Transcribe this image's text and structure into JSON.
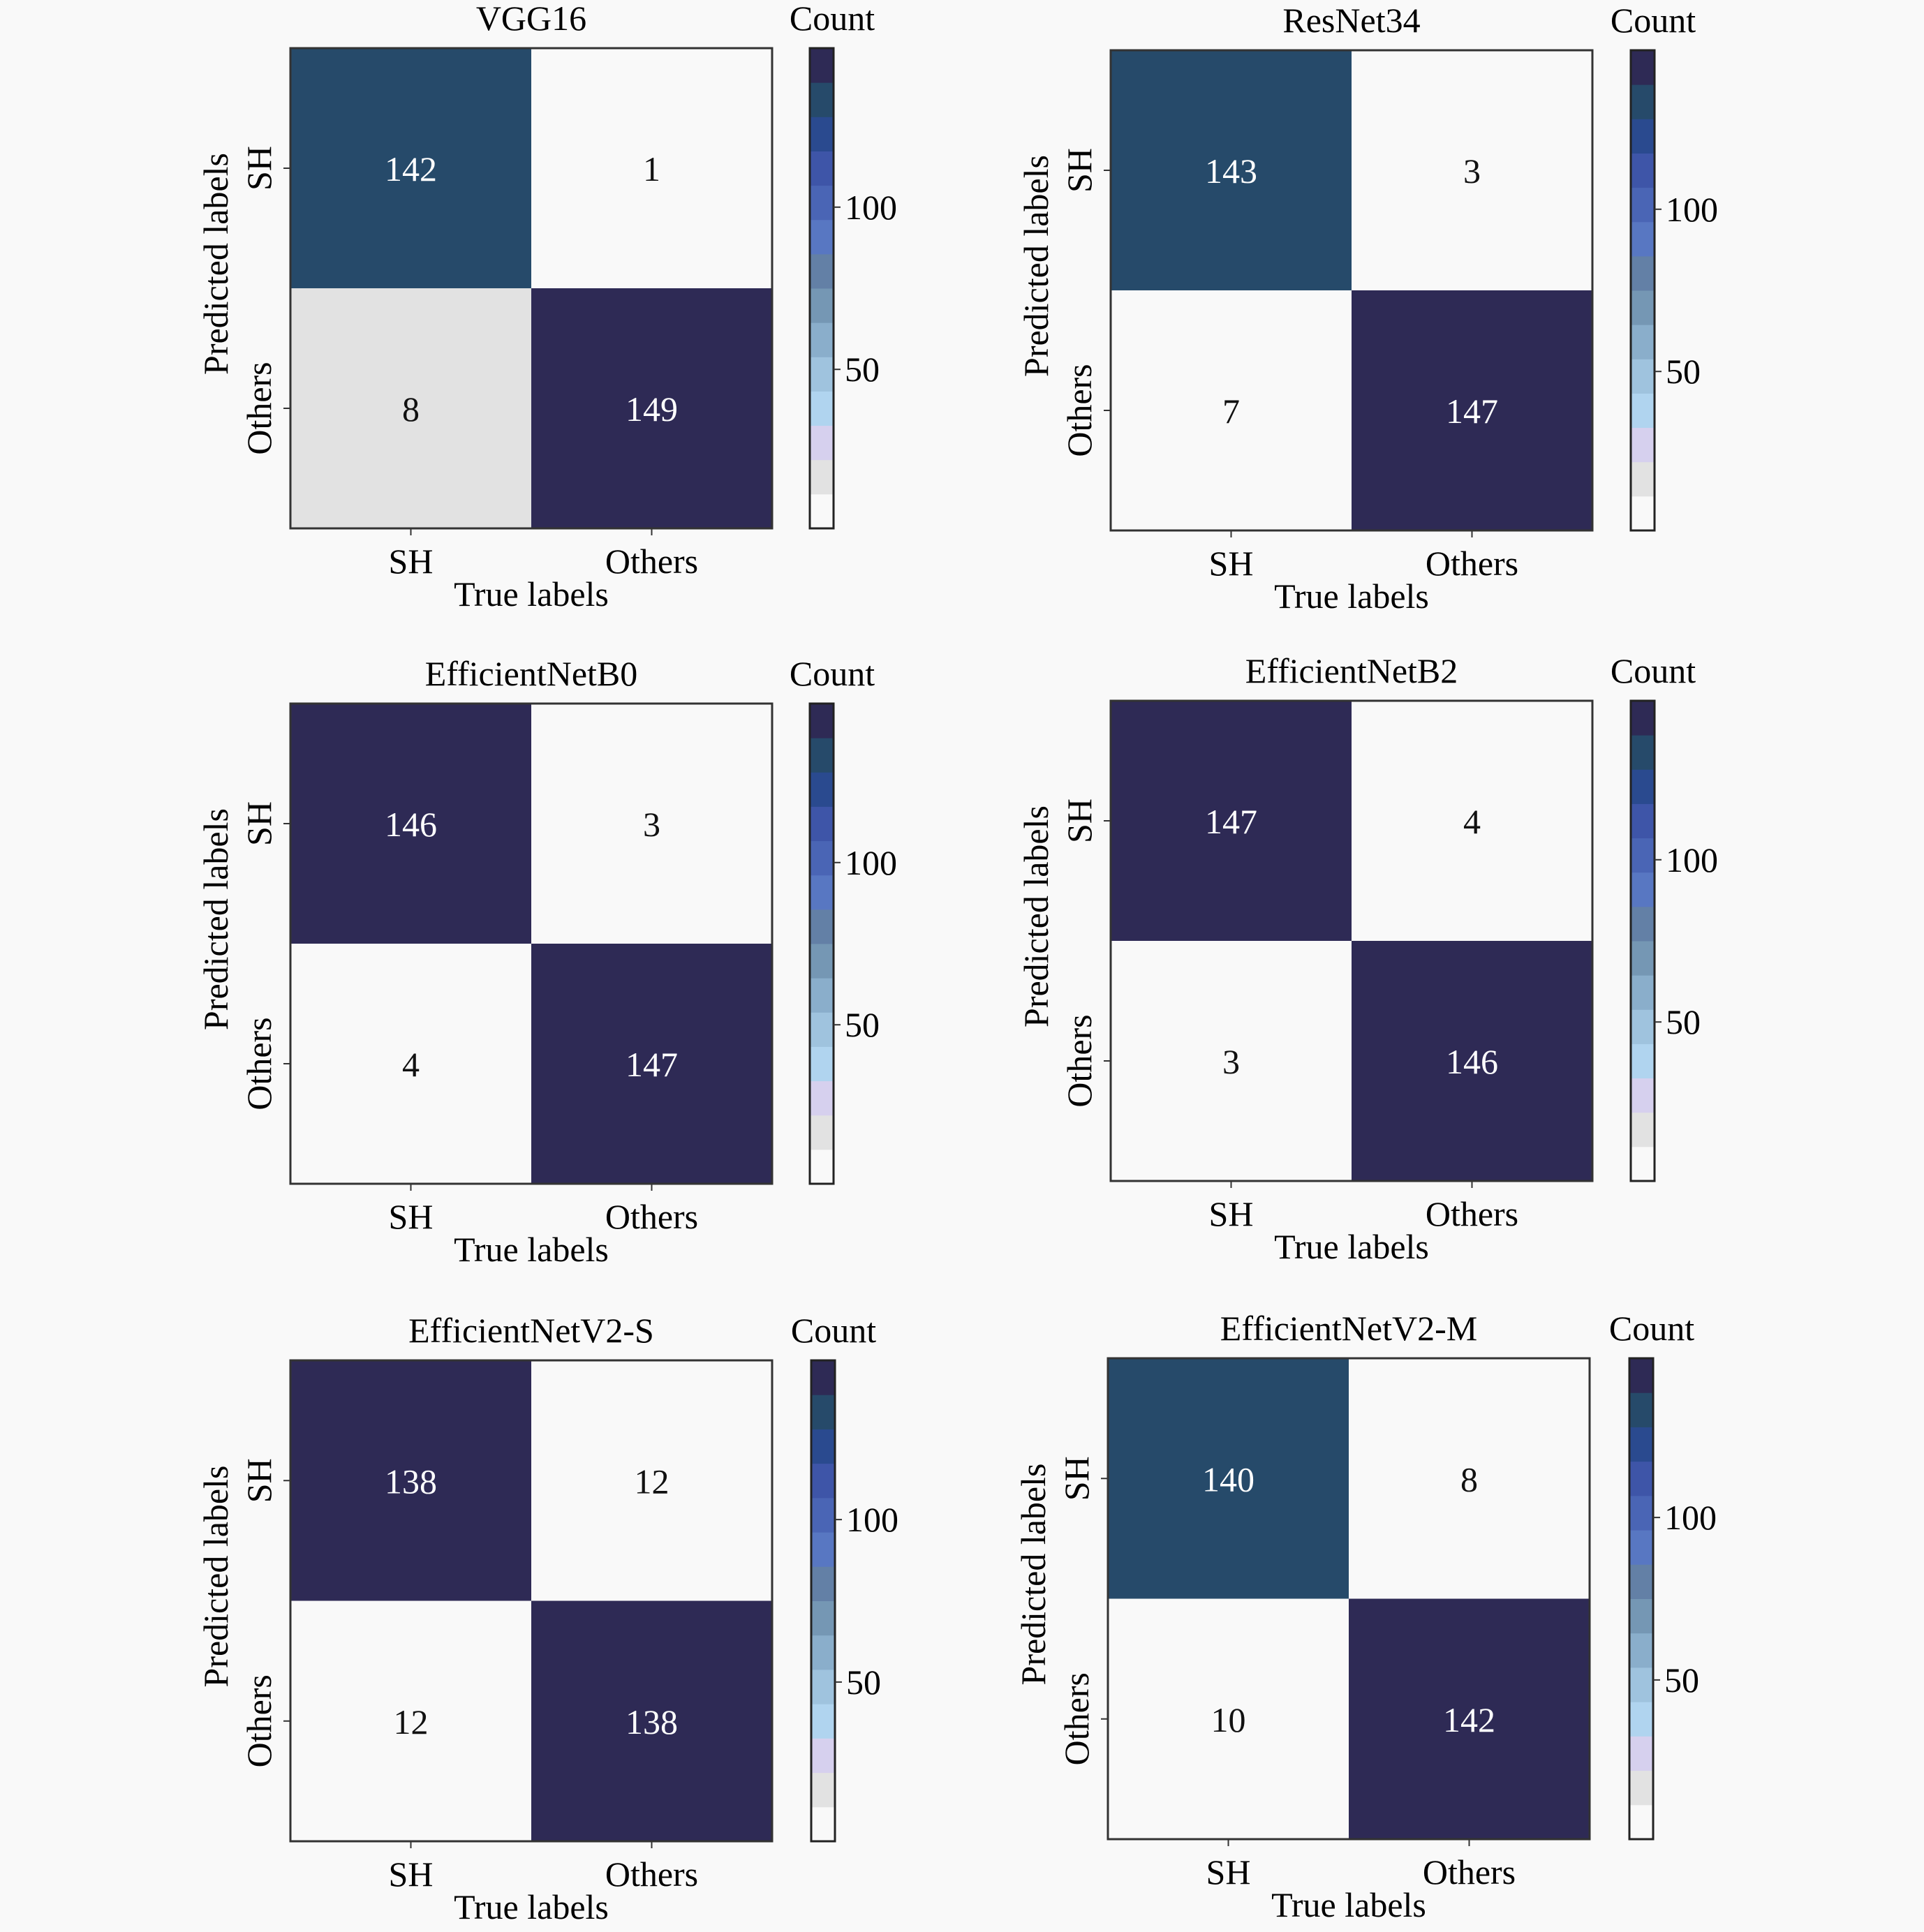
{
  "chart_data": [
    {
      "type": "heatmap",
      "title": "VGG16",
      "xlabel": "True labels",
      "ylabel": "Predicted labels",
      "x_categories": [
        "SH",
        "Others"
      ],
      "y_categories": [
        "SH",
        "Others"
      ],
      "values": [
        [
          142,
          1
        ],
        [
          8,
          149
        ]
      ],
      "colorbar": {
        "label": "Count",
        "ticks": [
          50,
          100
        ],
        "tick_labels": [
          "50",
          "100"
        ],
        "range": [
          1,
          149
        ]
      }
    },
    {
      "type": "heatmap",
      "title": "ResNet34",
      "xlabel": "True labels",
      "ylabel": "Predicted labels",
      "x_categories": [
        "SH",
        "Others"
      ],
      "y_categories": [
        "SH",
        "Others"
      ],
      "values": [
        [
          143,
          3
        ],
        [
          7,
          147
        ]
      ],
      "colorbar": {
        "label": "Count",
        "ticks": [
          50,
          100
        ],
        "tick_labels": [
          "50",
          "100"
        ],
        "range": [
          3,
          147
        ]
      }
    },
    {
      "type": "heatmap",
      "title": "EfficientNetB0",
      "xlabel": "True labels",
      "ylabel": "Predicted labels",
      "x_categories": [
        "SH",
        "Others"
      ],
      "y_categories": [
        "SH",
        "Others"
      ],
      "values": [
        [
          146,
          3
        ],
        [
          4,
          147
        ]
      ],
      "colorbar": {
        "label": "Count",
        "ticks": [
          50,
          100
        ],
        "tick_labels": [
          "50",
          "100"
        ],
        "range": [
          3,
          147
        ]
      }
    },
    {
      "type": "heatmap",
      "title": "EfficientNetB2",
      "xlabel": "True labels",
      "ylabel": "Predicted labels",
      "x_categories": [
        "SH",
        "Others"
      ],
      "y_categories": [
        "SH",
        "Others"
      ],
      "values": [
        [
          147,
          4
        ],
        [
          3,
          146
        ]
      ],
      "colorbar": {
        "label": "Count",
        "ticks": [
          50,
          100
        ],
        "tick_labels": [
          "50",
          "100"
        ],
        "range": [
          3,
          147
        ]
      }
    },
    {
      "type": "heatmap",
      "title": "EfficientNetV2-S",
      "xlabel": "True labels",
      "ylabel": "Predicted labels",
      "x_categories": [
        "SH",
        "Others"
      ],
      "y_categories": [
        "SH",
        "Others"
      ],
      "values": [
        [
          138,
          12
        ],
        [
          12,
          138
        ]
      ],
      "colorbar": {
        "label": "Count",
        "ticks": [
          50,
          100
        ],
        "tick_labels": [
          "50",
          "100"
        ],
        "range": [
          12,
          138
        ]
      }
    },
    {
      "type": "heatmap",
      "title": "EfficientNetV2-M",
      "xlabel": "True labels",
      "ylabel": "Predicted labels",
      "x_categories": [
        "SH",
        "Others"
      ],
      "y_categories": [
        "SH",
        "Others"
      ],
      "values": [
        [
          140,
          8
        ],
        [
          10,
          142
        ]
      ],
      "colorbar": {
        "label": "Count",
        "ticks": [
          50,
          100
        ],
        "tick_labels": [
          "50",
          "100"
        ],
        "range": [
          8,
          142
        ]
      }
    }
  ],
  "colormap": [
    "#f9f9f9",
    "#e2e2e2",
    "#d6d0ee",
    "#b0d4ef",
    "#9fc3de",
    "#8aaecb",
    "#7597b4",
    "#6380a6",
    "#5877c2",
    "#4a65b5",
    "#3e55a8",
    "#2a4a8f",
    "#264a6a",
    "#2e2a55"
  ],
  "colors": {
    "dark_cell": "#2e2a55",
    "teal_dark_cell": "#264a6a",
    "light_cell": "#f9f9f9",
    "grey_cell": "#e2e2e2",
    "background": "#f9f9f9"
  }
}
